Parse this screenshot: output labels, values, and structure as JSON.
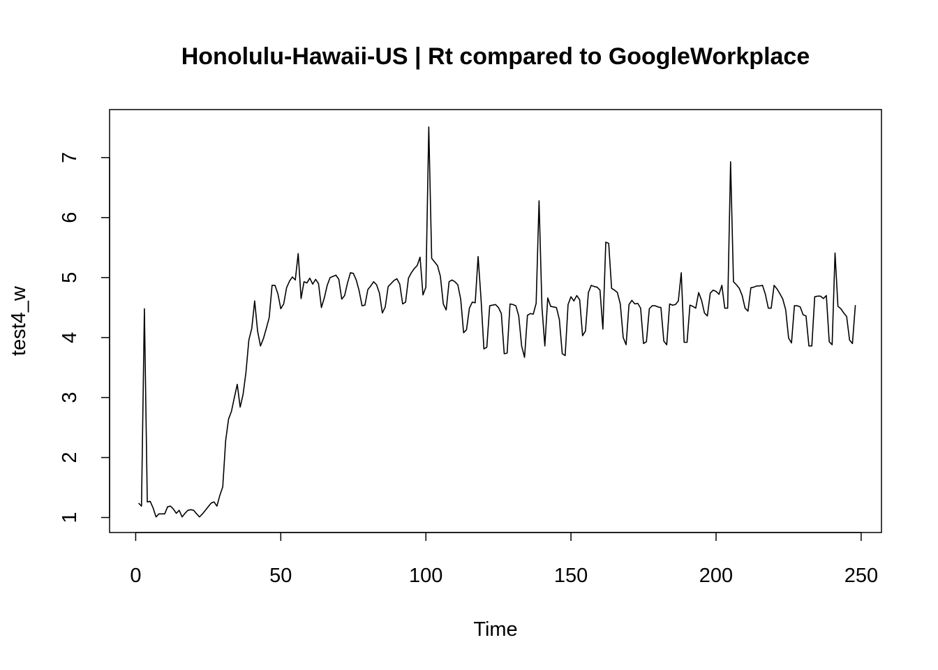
{
  "chart_data": {
    "type": "line",
    "title": "Honolulu-Hawaii-US | Rt compared to GoogleWorkplace",
    "xlabel": "Time",
    "ylabel": "test4_w",
    "xlim": [
      -9,
      257
    ],
    "ylim": [
      0.75,
      7.8
    ],
    "x_ticks": [
      0,
      50,
      100,
      150,
      200,
      250
    ],
    "y_ticks": [
      1,
      2,
      3,
      4,
      5,
      6,
      7
    ],
    "grid": false,
    "legend": "none",
    "line_color": "#000000",
    "x_start": 1,
    "series": [
      {
        "values": [
          1.24,
          1.19,
          4.48,
          1.26,
          1.27,
          1.16,
          1.01,
          1.06,
          1.06,
          1.06,
          1.18,
          1.19,
          1.14,
          1.07,
          1.12,
          1.01,
          1.07,
          1.12,
          1.13,
          1.12,
          1.06,
          1.01,
          1.06,
          1.12,
          1.18,
          1.24,
          1.26,
          1.19,
          1.37,
          1.51,
          2.28,
          2.64,
          2.77,
          3.0,
          3.22,
          2.84,
          3.05,
          3.42,
          3.96,
          4.15,
          4.61,
          4.11,
          3.86,
          3.98,
          4.15,
          4.33,
          4.87,
          4.87,
          4.73,
          4.48,
          4.56,
          4.83,
          4.94,
          5.01,
          4.96,
          5.4,
          4.65,
          4.93,
          4.91,
          4.99,
          4.89,
          4.97,
          4.9,
          4.5,
          4.66,
          4.87,
          5.0,
          5.02,
          5.04,
          4.97,
          4.64,
          4.7,
          4.91,
          5.08,
          5.07,
          4.96,
          4.78,
          4.53,
          4.54,
          4.8,
          4.86,
          4.93,
          4.88,
          4.74,
          4.41,
          4.51,
          4.85,
          4.9,
          4.95,
          4.98,
          4.89,
          4.56,
          4.59,
          4.99,
          5.08,
          5.15,
          5.2,
          5.34,
          4.71,
          4.84,
          7.51,
          5.32,
          5.26,
          5.2,
          5.02,
          4.56,
          4.46,
          4.93,
          4.96,
          4.93,
          4.88,
          4.64,
          4.08,
          4.13,
          4.49,
          4.59,
          4.58,
          5.35,
          4.65,
          3.81,
          3.84,
          4.53,
          4.54,
          4.55,
          4.5,
          4.4,
          3.73,
          3.74,
          4.56,
          4.55,
          4.53,
          4.36,
          3.86,
          3.67,
          4.37,
          4.4,
          4.39,
          4.57,
          6.28,
          4.51,
          3.86,
          4.66,
          4.52,
          4.51,
          4.5,
          4.3,
          3.73,
          3.7,
          4.55,
          4.68,
          4.61,
          4.7,
          4.63,
          4.03,
          4.11,
          4.75,
          4.87,
          4.85,
          4.84,
          4.79,
          4.14,
          5.59,
          5.57,
          4.82,
          4.79,
          4.75,
          4.56,
          4.0,
          3.88,
          4.55,
          4.62,
          4.56,
          4.57,
          4.49,
          3.9,
          3.93,
          4.48,
          4.53,
          4.53,
          4.51,
          4.5,
          3.94,
          3.88,
          4.56,
          4.54,
          4.55,
          4.61,
          5.08,
          3.92,
          3.92,
          4.54,
          4.52,
          4.49,
          4.75,
          4.62,
          4.41,
          4.36,
          4.74,
          4.79,
          4.77,
          4.72,
          4.87,
          4.49,
          4.49,
          6.93,
          4.93,
          4.88,
          4.82,
          4.7,
          4.49,
          4.44,
          4.83,
          4.84,
          4.86,
          4.86,
          4.87,
          4.72,
          4.49,
          4.49,
          4.87,
          4.81,
          4.73,
          4.64,
          4.46,
          3.99,
          3.91,
          4.53,
          4.53,
          4.51,
          4.38,
          4.36,
          3.86,
          3.86,
          4.68,
          4.69,
          4.69,
          4.65,
          4.7,
          3.93,
          3.88,
          5.41,
          4.52,
          4.48,
          4.41,
          4.35,
          3.96,
          3.9,
          4.54
        ]
      }
    ]
  }
}
